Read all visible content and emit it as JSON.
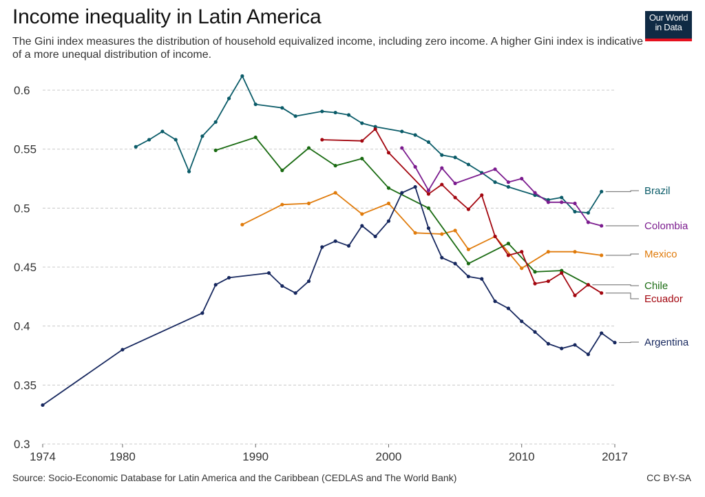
{
  "header": {
    "title": "Income inequality in Latin America",
    "subtitle": "The Gini index measures the distribution of household equivalized income, including zero income. A higher Gini index is indicative of a more unequal distribution of income."
  },
  "logo": {
    "line1": "Our World",
    "line2": "in Data"
  },
  "footer": {
    "source": "Source: Socio-Economic Database for Latin America and the Caribbean (CEDLAS and The World Bank)",
    "license": "CC BY-SA"
  },
  "chart_data": {
    "type": "line",
    "xlim": [
      1974,
      2017
    ],
    "ylim": [
      0.3,
      0.6
    ],
    "x_ticks": [
      "1974",
      "1980",
      "1990",
      "2000",
      "2010",
      "2017"
    ],
    "y_ticks": [
      "0.3",
      "0.35",
      "0.4",
      "0.45",
      "0.5",
      "0.55",
      "0.6"
    ],
    "grid": true,
    "legend": "right, inline labels",
    "series": [
      {
        "name": "Brazil",
        "color": "#0a5b68",
        "x": [
          1981,
          1982,
          1983,
          1984,
          1985,
          1986,
          1987,
          1988,
          1989,
          1990,
          1992,
          1993,
          1995,
          1996,
          1997,
          1998,
          1999,
          2001,
          2002,
          2003,
          2004,
          2005,
          2006,
          2007,
          2008,
          2009,
          2011,
          2012,
          2013,
          2014,
          2015,
          2016
        ],
        "y": [
          0.552,
          0.558,
          0.565,
          0.558,
          0.531,
          0.561,
          0.573,
          0.593,
          0.612,
          0.588,
          0.585,
          0.578,
          0.582,
          0.581,
          0.579,
          0.572,
          0.569,
          0.565,
          0.562,
          0.556,
          0.545,
          0.543,
          0.537,
          0.53,
          0.522,
          0.518,
          0.511,
          0.507,
          0.509,
          0.497,
          0.496,
          0.514
        ]
      },
      {
        "name": "Colombia",
        "color": "#7b1b8e",
        "x": [
          2001,
          2002,
          2003,
          2004,
          2005,
          2008,
          2009,
          2010,
          2011,
          2012,
          2013,
          2014,
          2015,
          2016
        ],
        "y": [
          0.551,
          0.535,
          0.515,
          0.534,
          0.521,
          0.533,
          0.522,
          0.525,
          0.513,
          0.505,
          0.505,
          0.504,
          0.488,
          0.485
        ]
      },
      {
        "name": "Mexico",
        "color": "#e07b0b",
        "x": [
          1989,
          1992,
          1994,
          1996,
          1998,
          2000,
          2002,
          2004,
          2005,
          2006,
          2008,
          2010,
          2012,
          2014,
          2016
        ],
        "y": [
          0.486,
          0.503,
          0.504,
          0.513,
          0.495,
          0.504,
          0.479,
          0.478,
          0.481,
          0.465,
          0.476,
          0.449,
          0.463,
          0.463,
          0.46
        ]
      },
      {
        "name": "Chile",
        "color": "#1a6b12",
        "x": [
          1987,
          1990,
          1992,
          1994,
          1996,
          1998,
          2000,
          2003,
          2006,
          2009,
          2011,
          2013,
          2015
        ],
        "y": [
          0.549,
          0.56,
          0.532,
          0.551,
          0.536,
          0.542,
          0.517,
          0.5,
          0.453,
          0.47,
          0.446,
          0.447,
          0.435
        ]
      },
      {
        "name": "Ecuador",
        "color": "#a3060f",
        "x": [
          1995,
          1998,
          1999,
          2000,
          2003,
          2004,
          2005,
          2006,
          2007,
          2008,
          2009,
          2010,
          2011,
          2012,
          2013,
          2014,
          2015,
          2016
        ],
        "y": [
          0.558,
          0.557,
          0.567,
          0.547,
          0.512,
          0.52,
          0.509,
          0.499,
          0.511,
          0.476,
          0.46,
          0.463,
          0.436,
          0.438,
          0.445,
          0.426,
          0.435,
          0.428
        ]
      },
      {
        "name": "Argentina",
        "color": "#16275e",
        "x": [
          1974,
          1980,
          1986,
          1987,
          1988,
          1991,
          1992,
          1993,
          1994,
          1995,
          1996,
          1997,
          1998,
          1999,
          2000,
          2001,
          2002,
          2003,
          2004,
          2005,
          2006,
          2007,
          2008,
          2009,
          2010,
          2011,
          2012,
          2013,
          2014,
          2015,
          2016,
          2017
        ],
        "y": [
          0.333,
          0.38,
          0.411,
          0.435,
          0.441,
          0.445,
          0.434,
          0.428,
          0.438,
          0.467,
          0.472,
          0.468,
          0.485,
          0.476,
          0.489,
          0.513,
          0.518,
          0.483,
          0.458,
          0.453,
          0.442,
          0.44,
          0.421,
          0.415,
          0.404,
          0.395,
          0.385,
          0.381,
          0.384,
          0.376,
          0.394,
          0.386
        ]
      }
    ]
  }
}
